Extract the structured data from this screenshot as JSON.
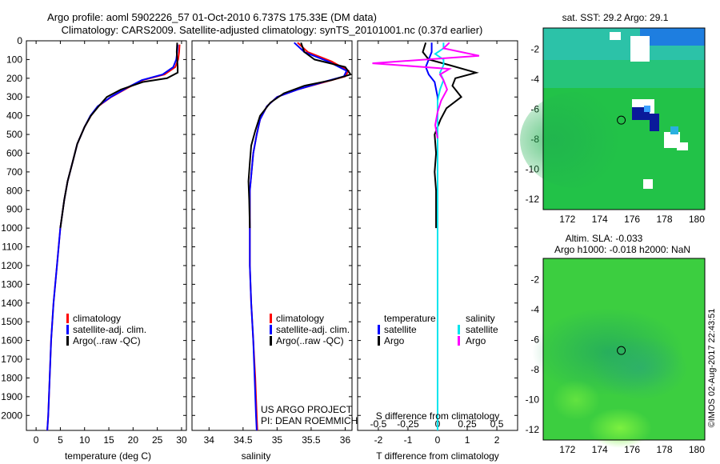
{
  "header": {
    "title_line1": "Argo profile: aoml 5902226_57 01-Oct-2010 6.737S 175.33E (DM data)",
    "title_line2": "Climatology: CARS2009. Satellite-adjusted climatology: synTS_20101001.nc (0.37d earlier)"
  },
  "colors": {
    "climatology": "#ff0000",
    "satellite": "#0000ff",
    "argo": "#000000",
    "salinity_sat": "#00e5ee",
    "salinity_argo": "#ff00ff"
  },
  "chart_data": [
    {
      "id": "temperature",
      "type": "line",
      "xlabel": "temperature (deg C)",
      "ylabel": "",
      "xlim": [
        -2,
        31
      ],
      "ylim": [
        2080,
        0
      ],
      "xticks": [
        0,
        5,
        10,
        15,
        20,
        25,
        30
      ],
      "yticks": [
        0,
        100,
        200,
        300,
        400,
        500,
        600,
        700,
        800,
        900,
        1000,
        1100,
        1200,
        1300,
        1400,
        1500,
        1600,
        1700,
        1800,
        1900,
        2000
      ],
      "legend": [
        "climatology",
        "satellite-adj. clim.",
        "Argo(..raw -QC)"
      ],
      "series": [
        {
          "name": "climatology",
          "color": "#ff0000",
          "points": [
            [
              29.6,
              20
            ],
            [
              29.5,
              60
            ],
            [
              29.3,
              100
            ],
            [
              28.7,
              140
            ],
            [
              26.5,
              180
            ],
            [
              22,
              210
            ],
            [
              19,
              250
            ],
            [
              15.5,
              300
            ],
            [
              12.8,
              350
            ],
            [
              11.3,
              400
            ],
            [
              10,
              460
            ],
            [
              8.5,
              550
            ],
            [
              7.5,
              650
            ],
            [
              6.5,
              750
            ],
            [
              5.8,
              850
            ],
            [
              5,
              1000
            ],
            [
              4.3,
              1200
            ],
            [
              3.6,
              1400
            ],
            [
              3.1,
              1600
            ],
            [
              2.8,
              1800
            ],
            [
              2.5,
              2000
            ],
            [
              2.3,
              2080
            ]
          ]
        },
        {
          "name": "satellite-adj. clim.",
          "color": "#0000ff",
          "points": [
            [
              29.2,
              20
            ],
            [
              29.1,
              60
            ],
            [
              28.9,
              100
            ],
            [
              28.3,
              140
            ],
            [
              26.1,
              180
            ],
            [
              21.8,
              210
            ],
            [
              18.8,
              250
            ],
            [
              15.4,
              300
            ],
            [
              12.7,
              350
            ],
            [
              11.2,
              400
            ],
            [
              10,
              460
            ],
            [
              8.5,
              550
            ],
            [
              7.5,
              650
            ],
            [
              6.5,
              750
            ],
            [
              5.8,
              850
            ],
            [
              5,
              1000
            ],
            [
              4.3,
              1200
            ],
            [
              3.6,
              1400
            ],
            [
              3.1,
              1600
            ],
            [
              2.8,
              1800
            ],
            [
              2.5,
              2000
            ],
            [
              2.3,
              2080
            ]
          ]
        },
        {
          "name": "Argo(..raw -QC)",
          "color": "#000000",
          "points": [
            [
              29.1,
              10
            ],
            [
              29,
              60
            ],
            [
              29.1,
              100
            ],
            [
              29.2,
              140
            ],
            [
              29.2,
              170
            ],
            [
              27,
              200
            ],
            [
              22,
              220
            ],
            [
              17.5,
              260
            ],
            [
              14.6,
              300
            ],
            [
              12.9,
              350
            ],
            [
              11.3,
              400
            ],
            [
              10,
              460
            ],
            [
              8.5,
              550
            ],
            [
              7.5,
              650
            ],
            [
              6.5,
              750
            ],
            [
              5.8,
              850
            ],
            [
              5,
              1000
            ]
          ]
        }
      ]
    },
    {
      "id": "salinity",
      "type": "line",
      "xlabel": "salinity",
      "xlim": [
        33.75,
        36.1
      ],
      "ylim": [
        2080,
        0
      ],
      "xticks": [
        34,
        34.5,
        35,
        35.5,
        36
      ],
      "xticklabels": [
        "34",
        "34.5",
        "35",
        "35.5",
        "36"
      ],
      "legend": [
        "climatology",
        "satellite-adj. clim.",
        "Argo(..raw -QC)"
      ],
      "series": [
        {
          "name": "climatology",
          "color": "#ff0000",
          "points": [
            [
              35.3,
              10
            ],
            [
              35.45,
              60
            ],
            [
              35.8,
              110
            ],
            [
              36.05,
              160
            ],
            [
              36,
              190
            ],
            [
              35.7,
              220
            ],
            [
              35.3,
              260
            ],
            [
              35,
              300
            ],
            [
              34.85,
              350
            ],
            [
              34.75,
              420
            ],
            [
              34.7,
              500
            ],
            [
              34.65,
              600
            ],
            [
              34.6,
              800
            ],
            [
              34.6,
              1000
            ],
            [
              34.6,
              1200
            ],
            [
              34.62,
              1400
            ],
            [
              34.65,
              1600
            ],
            [
              34.68,
              1800
            ],
            [
              34.7,
              2000
            ],
            [
              34.71,
              2080
            ]
          ]
        },
        {
          "name": "satellite-adj. clim.",
          "color": "#0000ff",
          "points": [
            [
              35.25,
              10
            ],
            [
              35.4,
              60
            ],
            [
              35.75,
              110
            ],
            [
              36.02,
              160
            ],
            [
              35.98,
              190
            ],
            [
              35.68,
              220
            ],
            [
              35.3,
              260
            ],
            [
              35,
              300
            ],
            [
              34.85,
              350
            ],
            [
              34.75,
              420
            ],
            [
              34.7,
              500
            ],
            [
              34.65,
              600
            ],
            [
              34.6,
              800
            ],
            [
              34.6,
              1000
            ],
            [
              34.6,
              1200
            ],
            [
              34.62,
              1400
            ],
            [
              34.65,
              1600
            ],
            [
              34.67,
              1800
            ],
            [
              34.69,
              2000
            ],
            [
              34.7,
              2080
            ]
          ]
        },
        {
          "name": "Argo(..raw -QC)",
          "color": "#000000",
          "points": [
            [
              35.35,
              10
            ],
            [
              35.4,
              60
            ],
            [
              35.55,
              100
            ],
            [
              36.0,
              140
            ],
            [
              36.08,
              180
            ],
            [
              35.8,
              210
            ],
            [
              35.4,
              240
            ],
            [
              35.1,
              280
            ],
            [
              34.9,
              330
            ],
            [
              34.75,
              400
            ],
            [
              34.68,
              480
            ],
            [
              34.62,
              560
            ],
            [
              34.6,
              650
            ],
            [
              34.58,
              750
            ],
            [
              34.59,
              850
            ],
            [
              34.6,
              1000
            ]
          ]
        }
      ],
      "annotation": {
        "line1": "US ARGO PROJECT",
        "line2": "PI: DEAN ROEMMICH"
      }
    },
    {
      "id": "difference",
      "type": "line",
      "xlabel": "T difference from climatology",
      "xlabel_top": "S difference from climatology",
      "xlim": [
        -2.7,
        2.7
      ],
      "ylim": [
        2080,
        0
      ],
      "xticks": [
        -2,
        -1,
        0,
        1,
        2
      ],
      "xticks_top": [
        -0.5,
        -0.25,
        0,
        0.25,
        0.5
      ],
      "xticks_top_labels": [
        "-0.5",
        "-0.25",
        "0",
        "0.25",
        "0.5"
      ],
      "legend_headers": {
        "temperature": "temperature",
        "salinity": "salinity"
      },
      "legend": [
        "satellite",
        "Argo",
        "satellite",
        "Argo"
      ],
      "series": [
        {
          "name": "T satellite",
          "color": "#0000ff",
          "points": [
            [
              -0.2,
              10
            ],
            [
              -0.2,
              60
            ],
            [
              -0.3,
              100
            ],
            [
              -0.4,
              140
            ],
            [
              -0.3,
              180
            ],
            [
              -0.1,
              220
            ],
            [
              0,
              300
            ],
            [
              0,
              500
            ],
            [
              0,
              1000
            ],
            [
              0,
              2080
            ]
          ]
        },
        {
          "name": "T Argo",
          "color": "#000000",
          "points": [
            [
              -0.4,
              10
            ],
            [
              -0.5,
              60
            ],
            [
              -0.3,
              100
            ],
            [
              0.4,
              130
            ],
            [
              1.3,
              170
            ],
            [
              0.6,
              200
            ],
            [
              0.5,
              240
            ],
            [
              0.8,
              300
            ],
            [
              0.3,
              360
            ],
            [
              0.1,
              420
            ],
            [
              -0.1,
              500
            ],
            [
              -0.05,
              600
            ],
            [
              -0.1,
              700
            ],
            [
              -0.05,
              800
            ],
            [
              -0.05,
              900
            ],
            [
              -0.05,
              1000
            ]
          ]
        },
        {
          "name": "S satellite",
          "color": "#00e5ee",
          "points": [
            [
              0.05,
              10
            ],
            [
              0.05,
              40
            ],
            [
              -0.02,
              70
            ],
            [
              0.05,
              100
            ],
            [
              0.05,
              130
            ],
            [
              0.02,
              170
            ],
            [
              0.05,
              210
            ],
            [
              0.02,
              260
            ],
            [
              0,
              320
            ],
            [
              0,
              500
            ],
            [
              0,
              1000
            ],
            [
              0,
              2080
            ]
          ]
        },
        {
          "name": "S Argo",
          "color": "#ff00ff",
          "points": [
            [
              0.1,
              10
            ],
            [
              0.05,
              40
            ],
            [
              0.35,
              80
            ],
            [
              -0.55,
              120
            ],
            [
              0.1,
              150
            ],
            [
              0.02,
              180
            ],
            [
              0.05,
              210
            ],
            [
              0.08,
              260
            ],
            [
              0.03,
              320
            ],
            [
              0,
              380
            ],
            [
              -0.02,
              450
            ],
            [
              0,
              520
            ]
          ]
        }
      ]
    },
    {
      "id": "sst_map",
      "type": "heatmap",
      "title": "sat. SST: 29.2  Argo: 29.1",
      "xlim": [
        170.5,
        180.5
      ],
      "ylim": [
        -12.7,
        -0.6
      ],
      "xticks": [
        172,
        174,
        176,
        178,
        180
      ],
      "yticks": [
        -2,
        -4,
        -6,
        -8,
        -10,
        -12
      ],
      "marker": {
        "lon": 175.33,
        "lat": -6.737
      }
    },
    {
      "id": "sla_map",
      "type": "heatmap",
      "title_line1": "Altim. SLA: -0.033",
      "title_line2": "Argo h1000: -0.018 h2000: NaN",
      "xlim": [
        170.5,
        180.5
      ],
      "ylim": [
        -12.7,
        -0.6
      ],
      "xticks": [
        172,
        174,
        176,
        178,
        180
      ],
      "yticks": [
        -2,
        -4,
        -6,
        -8,
        -10,
        -12
      ],
      "marker": {
        "lon": 175.33,
        "lat": -6.737
      }
    }
  ],
  "footer": {
    "stamp": "©IMOS 02-Aug-2017 22:43:51"
  }
}
